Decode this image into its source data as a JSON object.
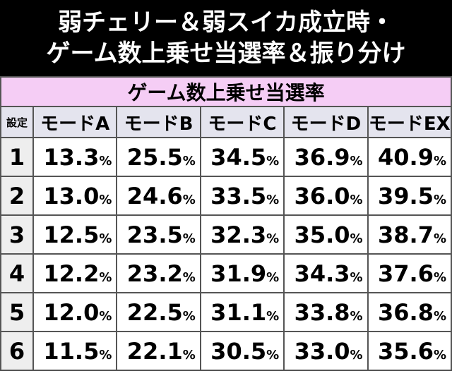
{
  "header": {
    "title_lines": [
      "弱チェリー＆弱スイカ成立時・",
      "ゲーム数上乗せ当選率＆振り分け"
    ]
  },
  "table": {
    "caption": "ゲーム数上乗せ当選率",
    "columns": [
      "設定",
      "モードA",
      "モードB",
      "モードC",
      "モードD",
      "モードEX"
    ],
    "rows": [
      [
        "1",
        "13.3%",
        "25.5%",
        "34.5%",
        "36.9%",
        "40.9%"
      ],
      [
        "2",
        "13.0%",
        "24.6%",
        "33.5%",
        "36.0%",
        "39.5%"
      ],
      [
        "3",
        "12.5%",
        "23.5%",
        "32.3%",
        "35.0%",
        "38.7%"
      ],
      [
        "4",
        "12.2%",
        "23.2%",
        "31.9%",
        "34.3%",
        "37.6%"
      ],
      [
        "5",
        "12.0%",
        "22.5%",
        "31.1%",
        "33.8%",
        "36.8%"
      ],
      [
        "6",
        "11.5%",
        "22.1%",
        "30.5%",
        "33.0%",
        "35.6%"
      ]
    ]
  }
}
